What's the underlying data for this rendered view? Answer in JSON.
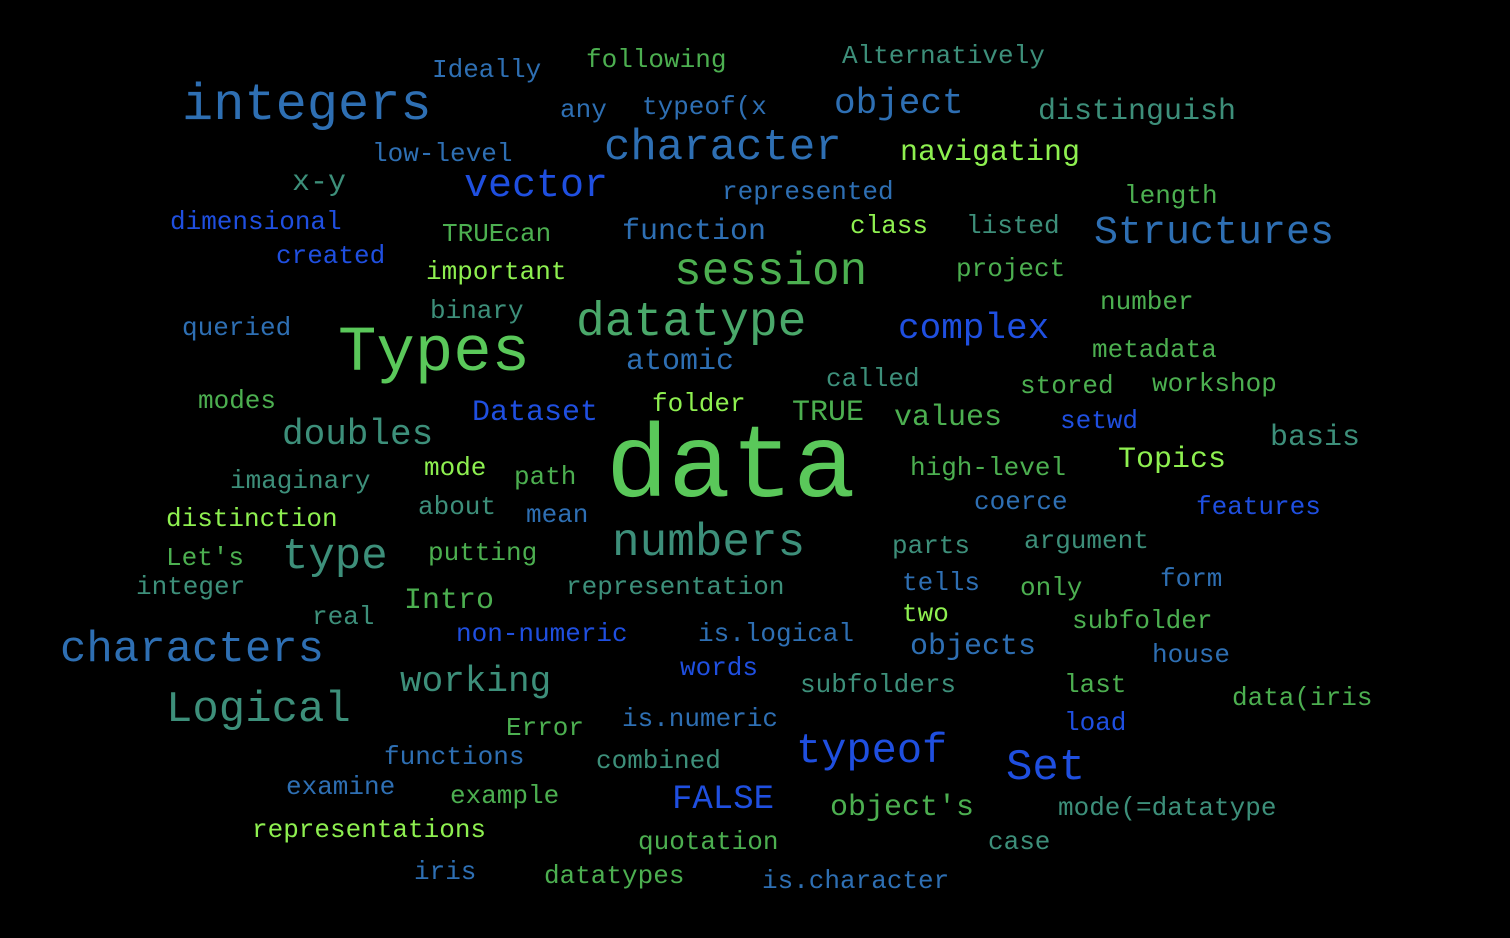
{
  "background_color": "#000000",
  "words": [
    {
      "text": "data",
      "color": "#5ac85a"
    },
    {
      "text": "Types",
      "color": "#5ac85a"
    },
    {
      "text": "integers",
      "color": "#2e6fb3"
    },
    {
      "text": "datatype",
      "color": "#4aa86a"
    },
    {
      "text": "session",
      "color": "#4caf50"
    },
    {
      "text": "numbers",
      "color": "#3d8f7a"
    },
    {
      "text": "character",
      "color": "#2e6fb3"
    },
    {
      "text": "characters",
      "color": "#2e6fb3"
    },
    {
      "text": "type",
      "color": "#3d8f7a"
    },
    {
      "text": "Logical",
      "color": "#3d8f7a"
    },
    {
      "text": "typeof",
      "color": "#1f4fe0"
    },
    {
      "text": "vector",
      "color": "#1f4fe0"
    },
    {
      "text": "Structures",
      "color": "#2e6fb3"
    },
    {
      "text": "complex",
      "color": "#1f4fe0"
    },
    {
      "text": "object",
      "color": "#2e6fb3"
    },
    {
      "text": "doubles",
      "color": "#3d8f7a"
    },
    {
      "text": "Set",
      "color": "#1f4fe0"
    },
    {
      "text": "working",
      "color": "#3d8f7a"
    },
    {
      "text": "distinguish",
      "color": "#3d8f7a"
    },
    {
      "text": "function",
      "color": "#2e6fb3"
    },
    {
      "text": "navigating",
      "color": "#8ef050"
    },
    {
      "text": "atomic",
      "color": "#2e6fb3"
    },
    {
      "text": "Dataset",
      "color": "#1f4fe0"
    },
    {
      "text": "values",
      "color": "#4caf50"
    },
    {
      "text": "basis",
      "color": "#3d8f7a"
    },
    {
      "text": "Topics",
      "color": "#8ef050"
    },
    {
      "text": "FALSE",
      "color": "#1f4fe0"
    },
    {
      "text": "object's",
      "color": "#4caf50"
    },
    {
      "text": "objects",
      "color": "#2e6fb3"
    },
    {
      "text": "Intro",
      "color": "#4caf50"
    },
    {
      "text": "TRUE",
      "color": "#4caf50"
    },
    {
      "text": "Ideally",
      "color": "#2e6fb3"
    },
    {
      "text": "following",
      "color": "#4caf50"
    },
    {
      "text": "Alternatively",
      "color": "#3d8f7a"
    },
    {
      "text": "any",
      "color": "#2e6fb3"
    },
    {
      "text": "typeof(x",
      "color": "#2e6fb3"
    },
    {
      "text": "low-level",
      "color": "#2e6fb3"
    },
    {
      "text": "x-y",
      "color": "#3d8f7a"
    },
    {
      "text": "represented",
      "color": "#2e6fb3"
    },
    {
      "text": "length",
      "color": "#4caf50"
    },
    {
      "text": "dimensional",
      "color": "#1f4fe0"
    },
    {
      "text": "TRUEcan",
      "color": "#4caf50"
    },
    {
      "text": "class",
      "color": "#8ef050"
    },
    {
      "text": "listed",
      "color": "#3d8f7a"
    },
    {
      "text": "created",
      "color": "#1f4fe0"
    },
    {
      "text": "important",
      "color": "#8ef050"
    },
    {
      "text": "project",
      "color": "#4caf50"
    },
    {
      "text": "binary",
      "color": "#3d8f7a"
    },
    {
      "text": "number",
      "color": "#4caf50"
    },
    {
      "text": "queried",
      "color": "#2e6fb3"
    },
    {
      "text": "metadata",
      "color": "#4caf50"
    },
    {
      "text": "called",
      "color": "#3d8f7a"
    },
    {
      "text": "stored",
      "color": "#4caf50"
    },
    {
      "text": "workshop",
      "color": "#4caf50"
    },
    {
      "text": "modes",
      "color": "#4caf50"
    },
    {
      "text": "folder",
      "color": "#8ef050"
    },
    {
      "text": "setwd",
      "color": "#1f4fe0"
    },
    {
      "text": "high-level",
      "color": "#4caf50"
    },
    {
      "text": "imaginary",
      "color": "#3d8f7a"
    },
    {
      "text": "mode",
      "color": "#8ef050"
    },
    {
      "text": "path",
      "color": "#4caf50"
    },
    {
      "text": "coerce",
      "color": "#2e6fb3"
    },
    {
      "text": "features",
      "color": "#1f4fe0"
    },
    {
      "text": "distinction",
      "color": "#8ef050"
    },
    {
      "text": "about",
      "color": "#3d8f7a"
    },
    {
      "text": "mean",
      "color": "#2e6fb3"
    },
    {
      "text": "parts",
      "color": "#3d8f7a"
    },
    {
      "text": "argument",
      "color": "#3d8f7a"
    },
    {
      "text": "Let's",
      "color": "#4caf50"
    },
    {
      "text": "putting",
      "color": "#4caf50"
    },
    {
      "text": "integer",
      "color": "#3d8f7a"
    },
    {
      "text": "representation",
      "color": "#3d8f7a"
    },
    {
      "text": "tells",
      "color": "#2e6fb3"
    },
    {
      "text": "only",
      "color": "#4caf50"
    },
    {
      "text": "form",
      "color": "#2e6fb3"
    },
    {
      "text": "real",
      "color": "#3d8f7a"
    },
    {
      "text": "two",
      "color": "#8ef050"
    },
    {
      "text": "subfolder",
      "color": "#4caf50"
    },
    {
      "text": "non-numeric",
      "color": "#1f4fe0"
    },
    {
      "text": "is.logical",
      "color": "#2e6fb3"
    },
    {
      "text": "house",
      "color": "#2e6fb3"
    },
    {
      "text": "words",
      "color": "#1f4fe0"
    },
    {
      "text": "subfolders",
      "color": "#3d8f7a"
    },
    {
      "text": "last",
      "color": "#4caf50"
    },
    {
      "text": "data(iris",
      "color": "#4caf50"
    },
    {
      "text": "Error",
      "color": "#4caf50"
    },
    {
      "text": "is.numeric",
      "color": "#2e6fb3"
    },
    {
      "text": "load",
      "color": "#1f4fe0"
    },
    {
      "text": "functions",
      "color": "#2e6fb3"
    },
    {
      "text": "combined",
      "color": "#3d8f7a"
    },
    {
      "text": "examine",
      "color": "#2e6fb3"
    },
    {
      "text": "example",
      "color": "#4caf50"
    },
    {
      "text": "mode(=datatype",
      "color": "#3d8f7a"
    },
    {
      "text": "representations",
      "color": "#8ef050"
    },
    {
      "text": "quotation",
      "color": "#4caf50"
    },
    {
      "text": "case",
      "color": "#3d8f7a"
    },
    {
      "text": "iris",
      "color": "#2e6fb3"
    },
    {
      "text": "datatypes",
      "color": "#4caf50"
    },
    {
      "text": "is.character",
      "color": "#2e6fb3"
    }
  ]
}
